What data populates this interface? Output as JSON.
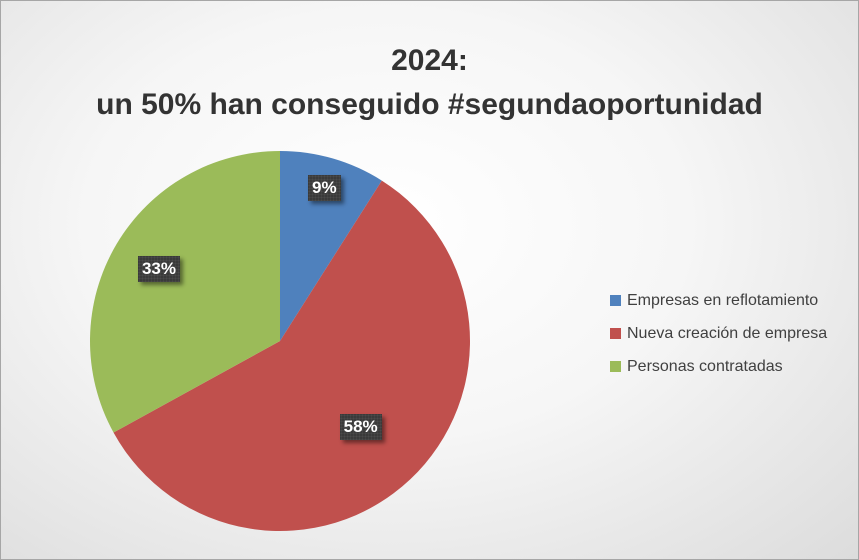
{
  "chart_data": {
    "type": "pie",
    "title_lines": [
      "2024:",
      "un 50% han conseguido #segundaoportunidad"
    ],
    "categories": [
      "Empresas en reflotamiento",
      "Nueva creación de empresa",
      "Personas contratadas"
    ],
    "values": [
      9,
      58,
      33
    ],
    "value_labels": [
      "9%",
      "58%",
      "33%"
    ],
    "colors": [
      "#4f81bd",
      "#c0504d",
      "#9bbb59"
    ],
    "start_angle": "12 o'clock",
    "direction": "clockwise",
    "legend_position": "right"
  }
}
